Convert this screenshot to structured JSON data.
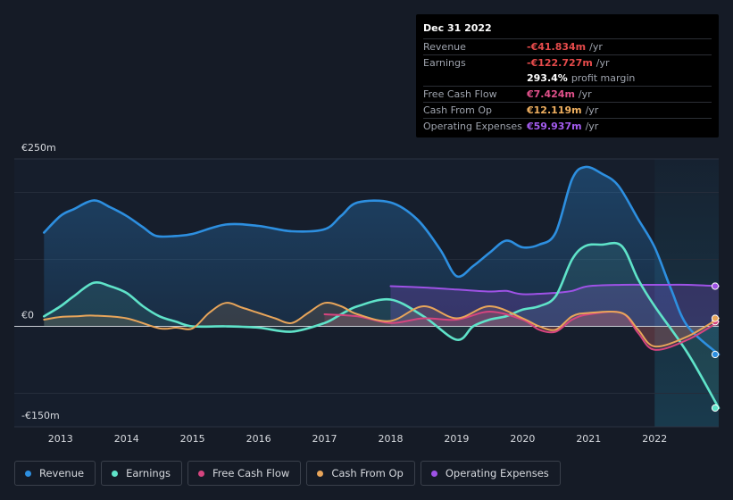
{
  "tooltip": {
    "date": "Dec 31 2022",
    "rows": [
      {
        "label": "Revenue",
        "value": "-€41.834m",
        "unit": "/yr",
        "color": "#e64b4b"
      },
      {
        "label": "Earnings",
        "value": "-€122.727m",
        "unit": "/yr",
        "color": "#e64b4b"
      },
      {
        "label": "",
        "value": "293.4%",
        "unit": "profit margin",
        "color": "#ffffff"
      },
      {
        "label": "Free Cash Flow",
        "value": "€7.424m",
        "unit": "/yr",
        "color": "#e0508a"
      },
      {
        "label": "Cash From Op",
        "value": "€12.119m",
        "unit": "/yr",
        "color": "#f0b060"
      },
      {
        "label": "Operating Expenses",
        "value": "€59.937m",
        "unit": "/yr",
        "color": "#a45cf0"
      }
    ]
  },
  "legend": [
    {
      "label": "Revenue",
      "color": "#2d8fe0"
    },
    {
      "label": "Earnings",
      "color": "#5fe3c9"
    },
    {
      "label": "Free Cash Flow",
      "color": "#d6457f"
    },
    {
      "label": "Cash From Op",
      "color": "#e8a55a"
    },
    {
      "label": "Operating Expenses",
      "color": "#9e52e6"
    }
  ],
  "chart_data": {
    "type": "area",
    "y_axis_labels": [
      "€250m",
      "€0",
      "-€150m"
    ],
    "ylim": [
      -150,
      250
    ],
    "x_ticks": [
      "2013",
      "2014",
      "2015",
      "2016",
      "2017",
      "2018",
      "2019",
      "2020",
      "2021",
      "2022"
    ],
    "xlim": [
      2012.3,
      2022.97
    ],
    "forecast_start": 2022.0,
    "series": [
      {
        "name": "Revenue",
        "color": "#2d8fe0",
        "x": [
          2012.75,
          2013.0,
          2013.2,
          2013.5,
          2013.75,
          2014.0,
          2014.25,
          2014.45,
          2014.75,
          2015.0,
          2015.5,
          2016.0,
          2016.5,
          2017.0,
          2017.25,
          2017.5,
          2018.0,
          2018.4,
          2018.75,
          2019.0,
          2019.25,
          2019.5,
          2019.75,
          2020.0,
          2020.25,
          2020.5,
          2020.75,
          2020.95,
          2021.2,
          2021.45,
          2021.75,
          2022.0,
          2022.25,
          2022.5,
          2022.97
        ],
        "values": [
          140,
          165,
          175,
          188,
          178,
          165,
          148,
          135,
          135,
          138,
          152,
          150,
          142,
          145,
          165,
          185,
          185,
          160,
          115,
          75,
          90,
          110,
          128,
          118,
          122,
          140,
          220,
          238,
          228,
          210,
          160,
          118,
          55,
          0,
          -42
        ]
      },
      {
        "name": "Earnings",
        "color": "#5fe3c9",
        "x": [
          2012.75,
          2013.0,
          2013.2,
          2013.5,
          2013.75,
          2014.0,
          2014.25,
          2014.5,
          2014.75,
          2015.0,
          2015.5,
          2016.0,
          2016.5,
          2017.0,
          2017.25,
          2017.5,
          2018.0,
          2018.5,
          2019.0,
          2019.25,
          2019.5,
          2019.75,
          2020.0,
          2020.25,
          2020.5,
          2020.75,
          2020.95,
          2021.2,
          2021.5,
          2021.75,
          2022.0,
          2022.5,
          2022.97
        ],
        "values": [
          15,
          30,
          45,
          65,
          60,
          50,
          30,
          15,
          7,
          0,
          0,
          -2,
          -8,
          5,
          18,
          30,
          40,
          15,
          -20,
          0,
          10,
          15,
          25,
          30,
          45,
          100,
          120,
          122,
          120,
          70,
          30,
          -40,
          -122
        ]
      },
      {
        "name": "Free Cash Flow",
        "color": "#d6457f",
        "x": [
          2017.0,
          2017.5,
          2018.0,
          2018.5,
          2019.0,
          2019.5,
          2020.0,
          2020.25,
          2020.5,
          2020.75,
          2021.0,
          2021.5,
          2021.75,
          2022.0,
          2022.5,
          2022.97
        ],
        "values": [
          18,
          15,
          5,
          12,
          10,
          22,
          10,
          -5,
          -8,
          10,
          18,
          20,
          -10,
          -35,
          -20,
          7
        ]
      },
      {
        "name": "Cash From Op",
        "color": "#e8a55a",
        "x": [
          2012.75,
          2013.0,
          2013.25,
          2013.5,
          2014.0,
          2014.5,
          2014.75,
          2015.0,
          2015.25,
          2015.5,
          2015.75,
          2016.0,
          2016.25,
          2016.5,
          2016.75,
          2017.0,
          2017.25,
          2017.5,
          2018.0,
          2018.5,
          2019.0,
          2019.5,
          2020.0,
          2020.25,
          2020.5,
          2020.75,
          2021.0,
          2021.5,
          2021.75,
          2022.0,
          2022.5,
          2022.97
        ],
        "values": [
          10,
          14,
          15,
          16,
          12,
          -3,
          -2,
          -3,
          20,
          35,
          28,
          20,
          12,
          5,
          20,
          35,
          30,
          18,
          8,
          30,
          12,
          30,
          12,
          0,
          -5,
          15,
          20,
          20,
          -5,
          -30,
          -15,
          12
        ]
      },
      {
        "name": "Operating Expenses",
        "color": "#9e52e6",
        "x": [
          2018.0,
          2018.5,
          2019.0,
          2019.5,
          2019.75,
          2020.0,
          2020.5,
          2020.75,
          2021.0,
          2021.5,
          2022.0,
          2022.5,
          2022.97
        ],
        "values": [
          60,
          58,
          55,
          52,
          53,
          48,
          50,
          53,
          60,
          62,
          62,
          62,
          60
        ]
      }
    ]
  }
}
